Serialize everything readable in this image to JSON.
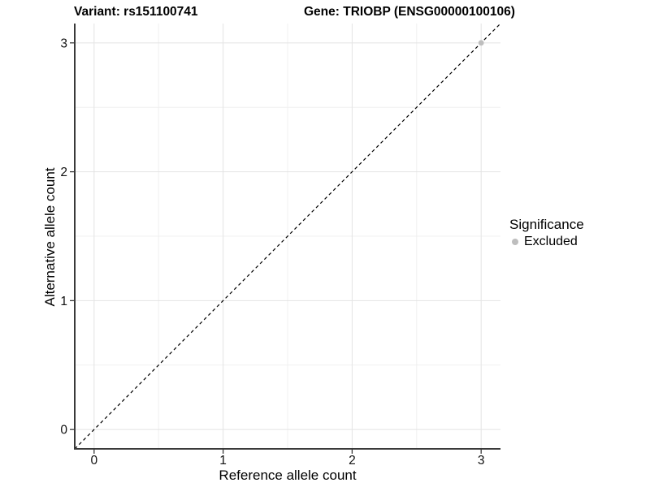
{
  "chart_data": {
    "type": "scatter",
    "titles": {
      "left": "Variant: rs151100741",
      "right": "Gene: TRIOBP (ENSG00000100106)"
    },
    "xlabel": "Reference allele count",
    "ylabel": "Alternative allele count",
    "xlim": [
      -0.15,
      3.15
    ],
    "ylim": [
      -0.15,
      3.15
    ],
    "xticks": [
      0,
      1,
      2,
      3
    ],
    "yticks": [
      0,
      1,
      2,
      3
    ],
    "xminor": [
      0.5,
      1.5,
      2.5
    ],
    "yminor": [
      0.5,
      1.5,
      2.5
    ],
    "grid": "on",
    "points": [
      {
        "x": 3,
        "y": 3,
        "series": "Excluded"
      }
    ],
    "reference_line": {
      "slope": 1,
      "intercept": 0,
      "style": "dashed",
      "color": "#000000"
    },
    "legend": {
      "title": "Significance",
      "position": "right",
      "entries": [
        {
          "label": "Excluded",
          "color": "#bebebe"
        }
      ]
    },
    "colors": {
      "background": "#ffffff",
      "grid_major": "#e4e4e4",
      "grid_minor": "#f0f0f0",
      "axis_line": "#3a3a3a",
      "tick_text": "#111111",
      "point_excluded": "#bebebe"
    }
  }
}
